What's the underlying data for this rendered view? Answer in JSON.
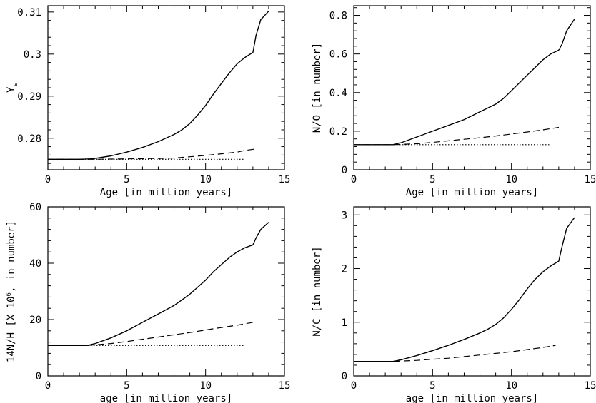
{
  "chart_data": [
    {
      "type": "line",
      "xlabel": "Age [in million years]",
      "ylabel": "Y",
      "ylabel_subscript": "s",
      "xlim": [
        0,
        15
      ],
      "ylim": [
        0.2725,
        0.3115
      ],
      "xticks": [
        0,
        5,
        10,
        15
      ],
      "yticks": [
        0.28,
        0.29,
        0.3,
        0.31
      ],
      "ytick_labels": [
        "0.28",
        "0.29",
        "0.3",
        "0.31"
      ],
      "series": [
        {
          "style": "solid",
          "x": [
            0,
            2,
            2.8,
            4,
            5,
            6,
            7,
            8,
            8.5,
            9,
            9.5,
            10,
            10.5,
            11,
            11.5,
            12,
            12.5,
            13,
            13.2,
            13.5,
            14
          ],
          "y": [
            0.275,
            0.275,
            0.2751,
            0.2758,
            0.2767,
            0.2778,
            0.2792,
            0.2809,
            0.282,
            0.2835,
            0.2855,
            0.2878,
            0.2905,
            0.293,
            0.2955,
            0.2977,
            0.2992,
            0.3004,
            0.3045,
            0.3082,
            0.3102
          ]
        },
        {
          "style": "dashed",
          "x": [
            0,
            2.8,
            5,
            7,
            8,
            9,
            10,
            11,
            12,
            12.5,
            13.1
          ],
          "y": [
            0.275,
            0.275,
            0.2751,
            0.2752,
            0.2753,
            0.2756,
            0.2759,
            0.2763,
            0.2767,
            0.2771,
            0.2774
          ]
        },
        {
          "style": "dotted",
          "x": [
            0,
            12.5
          ],
          "y": [
            0.275,
            0.275
          ]
        }
      ]
    },
    {
      "type": "line",
      "xlabel": "Age [in million years]",
      "ylabel": "N/O [in number]",
      "xlim": [
        0,
        15
      ],
      "ylim": [
        0,
        0.85
      ],
      "xticks": [
        0,
        5,
        10,
        15
      ],
      "yticks": [
        0,
        0.2,
        0.4,
        0.6,
        0.8
      ],
      "ytick_labels": [
        "0",
        "0.2",
        "0.4",
        "0.6",
        "0.8"
      ],
      "series": [
        {
          "style": "solid",
          "x": [
            0,
            2.5,
            3,
            4,
            5,
            6,
            7,
            8,
            8.5,
            9,
            9.5,
            10,
            10.5,
            11,
            11.5,
            12,
            12.5,
            13,
            13.2,
            13.5,
            14
          ],
          "y": [
            0.13,
            0.13,
            0.14,
            0.17,
            0.2,
            0.23,
            0.26,
            0.3,
            0.32,
            0.34,
            0.37,
            0.41,
            0.45,
            0.49,
            0.53,
            0.57,
            0.6,
            0.62,
            0.65,
            0.72,
            0.78
          ]
        },
        {
          "style": "dashed",
          "x": [
            0,
            2.5,
            4,
            5,
            6,
            7,
            8,
            9,
            10,
            11,
            12,
            13
          ],
          "y": [
            0.13,
            0.13,
            0.135,
            0.142,
            0.15,
            0.158,
            0.166,
            0.175,
            0.185,
            0.196,
            0.207,
            0.22
          ]
        },
        {
          "style": "dotted",
          "x": [
            0,
            12.5
          ],
          "y": [
            0.13,
            0.13
          ]
        }
      ]
    },
    {
      "type": "line",
      "xlabel": "age [in million years]",
      "ylabel": "14N/H [X 10",
      "ylabel_superscript": "6",
      "ylabel_suffix": ", in number]",
      "xlim": [
        0,
        15
      ],
      "ylim": [
        0,
        60
      ],
      "xticks": [
        0,
        5,
        10,
        15
      ],
      "yticks": [
        0,
        20,
        40,
        60
      ],
      "ytick_labels": [
        "0",
        "20",
        "40",
        "60"
      ],
      "series": [
        {
          "style": "solid",
          "x": [
            0,
            2.5,
            3,
            4,
            5,
            6,
            7,
            8,
            8.5,
            9,
            9.5,
            10,
            10.5,
            11,
            11.5,
            12,
            12.5,
            13,
            13.2,
            13.5,
            14
          ],
          "y": [
            10.8,
            10.8,
            11.5,
            13.5,
            16,
            19,
            22,
            25,
            27,
            29,
            31.5,
            34,
            37,
            39.5,
            42,
            44,
            45.5,
            46.5,
            49,
            52,
            54.5
          ]
        },
        {
          "style": "dashed",
          "x": [
            0,
            2.5,
            4,
            5,
            6,
            7,
            8,
            9,
            10,
            11,
            12,
            13
          ],
          "y": [
            10.8,
            10.8,
            11.5,
            12.2,
            13,
            13.8,
            14.6,
            15.4,
            16.3,
            17.2,
            18,
            19
          ]
        },
        {
          "style": "dotted",
          "x": [
            0,
            12.5
          ],
          "y": [
            10.8,
            10.8
          ]
        }
      ]
    },
    {
      "type": "line",
      "xlabel": "age [in million years]",
      "ylabel": "N/C [in number]",
      "xlim": [
        0,
        15
      ],
      "ylim": [
        0,
        3.15
      ],
      "xticks": [
        0,
        5,
        10,
        15
      ],
      "yticks": [
        0,
        1,
        2,
        3
      ],
      "ytick_labels": [
        "0",
        "1",
        "2",
        "3"
      ],
      "series": [
        {
          "style": "solid",
          "x": [
            0,
            2.5,
            3,
            4,
            5,
            6,
            7,
            8,
            8.5,
            9,
            9.5,
            10,
            10.5,
            11,
            11.5,
            12,
            12.5,
            13,
            13.2,
            13.5,
            14
          ],
          "y": [
            0.27,
            0.27,
            0.3,
            0.38,
            0.47,
            0.57,
            0.68,
            0.8,
            0.87,
            0.96,
            1.08,
            1.24,
            1.42,
            1.62,
            1.8,
            1.94,
            2.05,
            2.14,
            2.4,
            2.75,
            2.95
          ]
        },
        {
          "style": "dashed",
          "x": [
            0,
            2.5,
            4,
            5,
            6,
            7,
            8,
            9,
            10,
            11,
            12,
            12.8
          ],
          "y": [
            0.27,
            0.27,
            0.29,
            0.31,
            0.33,
            0.36,
            0.39,
            0.42,
            0.45,
            0.49,
            0.53,
            0.57
          ]
        }
      ]
    }
  ]
}
